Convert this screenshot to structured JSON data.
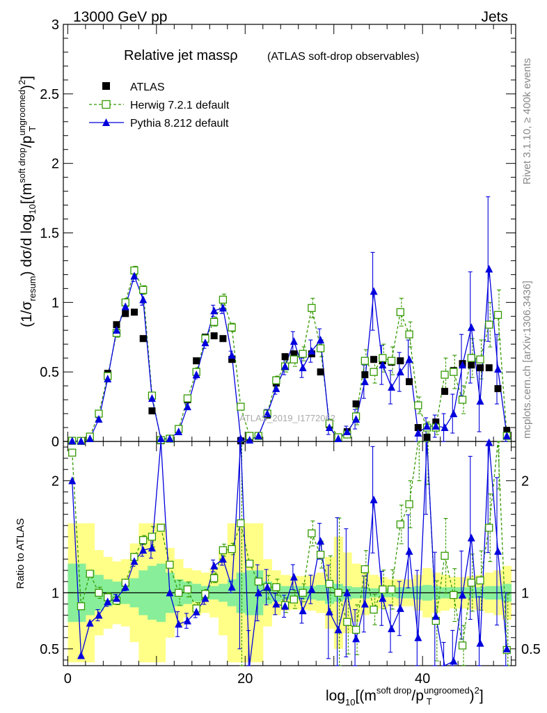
{
  "header": {
    "energy_label": "13000 GeV pp",
    "category_label": "Jets",
    "side_label_top": "Rivet 3.1.10, ≥ 400k events",
    "side_label_bottom": "mcplots.cern.ch [arXiv:1306.3436]",
    "watermark": "ATLAS_2019_I1772062"
  },
  "colors": {
    "data": "#000000",
    "herwig": "#339900",
    "pythia": "#0000dd",
    "band_inner": "#88ee99",
    "band_outer": "#ffff88"
  },
  "chart_data": [
    {
      "type": "scatter",
      "title": "Relative jet massρ",
      "subtitle": "(ATLAS soft-drop observables)",
      "xlabel": "log10[(m^soft drop/pT^ungroomed)^2]",
      "ylabel": "(1/σresum) dσ/d log10[(m^soft drop/pT^ungroomed)^2]",
      "xlim": [
        -0.5,
        50.5
      ],
      "ylim": [
        0,
        3
      ],
      "y_ticks": [
        "0",
        "0.5",
        "1",
        "1.5",
        "2",
        "2.5",
        "3"
      ],
      "x_ticks": [
        "0",
        "20",
        "40"
      ],
      "legend": [
        "ATLAS",
        "Herwig 7.2.1 default",
        "Pythia 8.212 default"
      ],
      "legend_position": "top-left",
      "x": [
        0.5,
        1.5,
        2.5,
        3.5,
        4.5,
        5.5,
        6.5,
        7.5,
        8.5,
        9.5,
        10.5,
        11.5,
        12.5,
        13.5,
        14.5,
        15.5,
        16.5,
        17.5,
        18.5,
        19.5,
        20.5,
        21.5,
        22.5,
        23.5,
        24.5,
        25.5,
        26.5,
        27.5,
        28.5,
        29.5,
        30.5,
        31.5,
        32.5,
        33.5,
        34.5,
        35.5,
        36.5,
        37.5,
        38.5,
        39.5,
        40.5,
        41.5,
        42.5,
        43.5,
        44.5,
        45.5,
        46.5,
        47.5,
        48.5,
        49.5
      ],
      "series": [
        {
          "name": "ATLAS",
          "values": [
            0.002,
            0.005,
            0.03,
            0.2,
            0.49,
            0.84,
            0.92,
            0.93,
            0.74,
            0.22,
            0.005,
            0.02,
            0.09,
            0.3,
            0.58,
            0.75,
            0.76,
            0.74,
            0.59,
            0.004,
            0.03,
            0.04,
            0.19,
            0.42,
            0.61,
            0.63,
            0.63,
            0.63,
            0.5,
            0.12,
            0.03,
            0.07,
            0.27,
            0.48,
            0.59,
            0.58,
            0.57,
            0.58,
            0.43,
            0.1,
            0.03,
            0.14,
            0.36,
            0.51,
            0.56,
            0.55,
            0.53,
            0.53,
            0.38,
            0.08
          ]
        },
        {
          "name": "Herwig 7.2.1 default",
          "values": [
            0.005,
            0.004,
            0.035,
            0.2,
            0.47,
            0.78,
            1.0,
            1.23,
            1.09,
            0.33,
            0.01,
            0.02,
            0.09,
            0.31,
            0.5,
            0.74,
            0.86,
            1.02,
            0.82,
            0.25,
            0.04,
            0.04,
            0.2,
            0.44,
            0.54,
            0.59,
            0.63,
            0.96,
            0.67,
            0.13,
            0.03,
            0.05,
            0.18,
            0.58,
            0.5,
            0.6,
            0.58,
            0.93,
            0.77,
            0.26,
            0.1,
            0.1,
            0.48,
            0.5,
            0.3,
            0.6,
            0.59,
            0.84,
            0.91,
            0.04
          ]
        },
        {
          "name": "Pythia 8.212 default",
          "values": [
            0.004,
            0.002,
            0.02,
            0.16,
            0.45,
            0.8,
            0.97,
            1.19,
            1.02,
            0.31,
            0.02,
            0.02,
            0.07,
            0.25,
            0.48,
            0.71,
            0.94,
            0.96,
            0.62,
            0.02,
            0.01,
            0.04,
            0.2,
            0.38,
            0.54,
            0.72,
            0.53,
            0.65,
            0.73,
            0.1,
            0.02,
            0.07,
            0.16,
            0.43,
            1.08,
            0.55,
            0.39,
            0.5,
            0.59,
            0.06,
            0.11,
            0.11,
            0.1,
            0.2,
            0.55,
            0.82,
            0.29,
            1.24,
            0.52,
            0.04
          ]
        }
      ],
      "errors": {
        "Herwig 7.2.1 default": [
          0,
          0,
          0,
          0.01,
          0.02,
          0.03,
          0.03,
          0.03,
          0.03,
          0.02,
          0,
          0,
          0.01,
          0.02,
          0.03,
          0.03,
          0.03,
          0.04,
          0.03,
          0.02,
          0,
          0,
          0.02,
          0.03,
          0.04,
          0.05,
          0.05,
          0.07,
          0.06,
          0.03,
          0.02,
          0.02,
          0.06,
          0.08,
          0.08,
          0.1,
          0.1,
          0.1,
          0.09,
          0.06,
          0.04,
          0.05,
          0.12,
          0.12,
          0.1,
          0.14,
          0.14,
          0.16,
          0.18,
          0.04
        ],
        "Pythia 8.212 default": [
          0,
          0,
          0,
          0.01,
          0.02,
          0.03,
          0.03,
          0.04,
          0.04,
          0.02,
          0,
          0,
          0.01,
          0.02,
          0.03,
          0.04,
          0.04,
          0.04,
          0.03,
          0.01,
          0.01,
          0.01,
          0.03,
          0.04,
          0.06,
          0.07,
          0.07,
          0.08,
          0.08,
          0.05,
          0.03,
          0.04,
          0.07,
          0.12,
          0.28,
          0.14,
          0.12,
          0.14,
          0.14,
          0.06,
          0.06,
          0.08,
          0.1,
          0.14,
          0.22,
          0.4,
          0.22,
          0.52,
          0.25,
          0.04
        ]
      }
    },
    {
      "type": "line",
      "ylabel": "Ratio to ATLAS",
      "xlim": [
        -0.5,
        50.5
      ],
      "ylim": [
        0.35,
        2.35
      ],
      "y_ticks": [
        "0.5",
        "1",
        "2"
      ],
      "reference": 1,
      "series": [
        {
          "name": "Herwig 7.2.1 default",
          "values": [
            2.25,
            0.88,
            1.17,
            1.0,
            0.96,
            0.93,
            1.09,
            1.32,
            1.47,
            1.5,
            1.58,
            1.25,
            1.0,
            1.03,
            0.86,
            0.99,
            1.13,
            1.38,
            1.39,
            1.62,
            1.26,
            1.1,
            1.05,
            1.05,
            0.89,
            0.94,
            1.0,
            1.53,
            1.34,
            1.08,
            1.0,
            0.74,
            0.67,
            1.21,
            0.85,
            1.03,
            1.03,
            1.61,
            1.79,
            2.6,
            3.3,
            0.75,
            1.33,
            0.98,
            0.53,
            1.09,
            1.11,
            1.58,
            2.4,
            0.49
          ]
        },
        {
          "name": "Pythia 8.212 default",
          "values": [
            2.0,
            0.44,
            0.73,
            0.8,
            0.92,
            0.95,
            1.05,
            1.28,
            1.38,
            1.4,
            2.5,
            1.0,
            0.72,
            0.75,
            0.83,
            0.95,
            1.24,
            1.3,
            1.05,
            3.0,
            0.33,
            1.0,
            1.05,
            0.9,
            0.88,
            1.14,
            0.84,
            1.03,
            1.46,
            0.83,
            0.67,
            1.0,
            0.59,
            0.9,
            1.83,
            0.95,
            0.68,
            0.86,
            1.37,
            0.6,
            3.7,
            0.79,
            0.28,
            0.39,
            0.98,
            1.49,
            0.55,
            2.34,
            1.37,
            0.5
          ]
        }
      ],
      "band_inner": [
        0.26,
        0.26,
        0.2,
        0.16,
        0.12,
        0.1,
        0.1,
        0.13,
        0.2,
        0.24,
        0.26,
        0.18,
        0.12,
        0.1,
        0.08,
        0.06,
        0.06,
        0.08,
        0.12,
        0.18,
        0.2,
        0.2,
        0.1,
        0.08,
        0.06,
        0.06,
        0.06,
        0.06,
        0.07,
        0.1,
        0.08,
        0.06,
        0.05,
        0.05,
        0.04,
        0.04,
        0.04,
        0.05,
        0.05,
        0.06,
        0.07,
        0.06,
        0.05,
        0.05,
        0.05,
        0.05,
        0.05,
        0.06,
        0.06,
        0.08
      ],
      "band_outer": [
        0.62,
        0.62,
        0.62,
        0.38,
        0.32,
        0.28,
        0.3,
        0.44,
        0.62,
        0.62,
        0.62,
        0.4,
        0.3,
        0.22,
        0.2,
        0.18,
        0.22,
        0.38,
        0.62,
        0.62,
        0.62,
        0.62,
        0.3,
        0.2,
        0.16,
        0.15,
        0.15,
        0.16,
        0.18,
        0.32,
        0.5,
        0.36,
        0.26,
        0.2,
        0.16,
        0.14,
        0.12,
        0.12,
        0.12,
        0.16,
        0.22,
        0.18,
        0.16,
        0.14,
        0.14,
        0.15,
        0.16,
        0.18,
        0.2,
        0.24
      ]
    }
  ]
}
